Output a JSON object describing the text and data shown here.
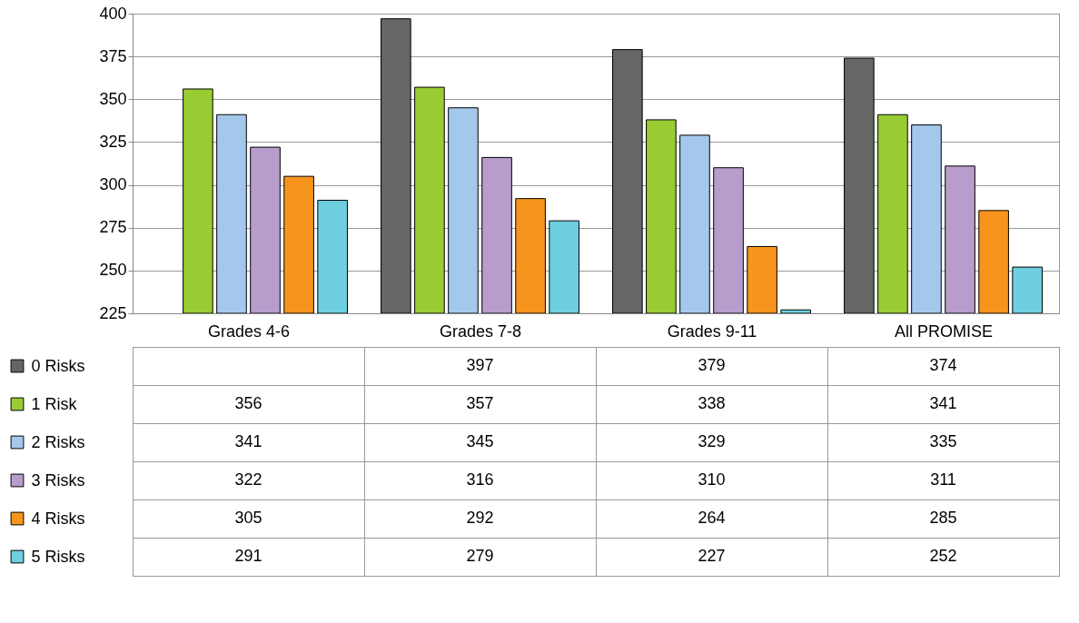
{
  "chart_data": {
    "type": "bar",
    "categories": [
      "Grades 4-6",
      "Grades 7-8",
      "Grades 9-11",
      "All PROMISE"
    ],
    "series": [
      {
        "name": "0 Risks",
        "color": "#666666",
        "values": [
          null,
          397,
          379,
          374
        ]
      },
      {
        "name": "1 Risk",
        "color": "#99cc33",
        "values": [
          356,
          357,
          338,
          341
        ]
      },
      {
        "name": "2 Risks",
        "color": "#a3c8ec",
        "values": [
          341,
          345,
          329,
          335
        ]
      },
      {
        "name": "3 Risks",
        "color": "#b89dcc",
        "values": [
          322,
          316,
          310,
          311
        ]
      },
      {
        "name": "4 Risks",
        "color": "#f7941d",
        "values": [
          305,
          292,
          264,
          285
        ]
      },
      {
        "name": "5 Risks",
        "color": "#6dcfdf",
        "values": [
          291,
          279,
          227,
          252
        ]
      }
    ],
    "ylim": [
      225,
      400
    ],
    "yticks": [
      225,
      250,
      275,
      300,
      325,
      350,
      375,
      400
    ],
    "grid": "y",
    "legend": "bottom",
    "data_labels": true
  }
}
